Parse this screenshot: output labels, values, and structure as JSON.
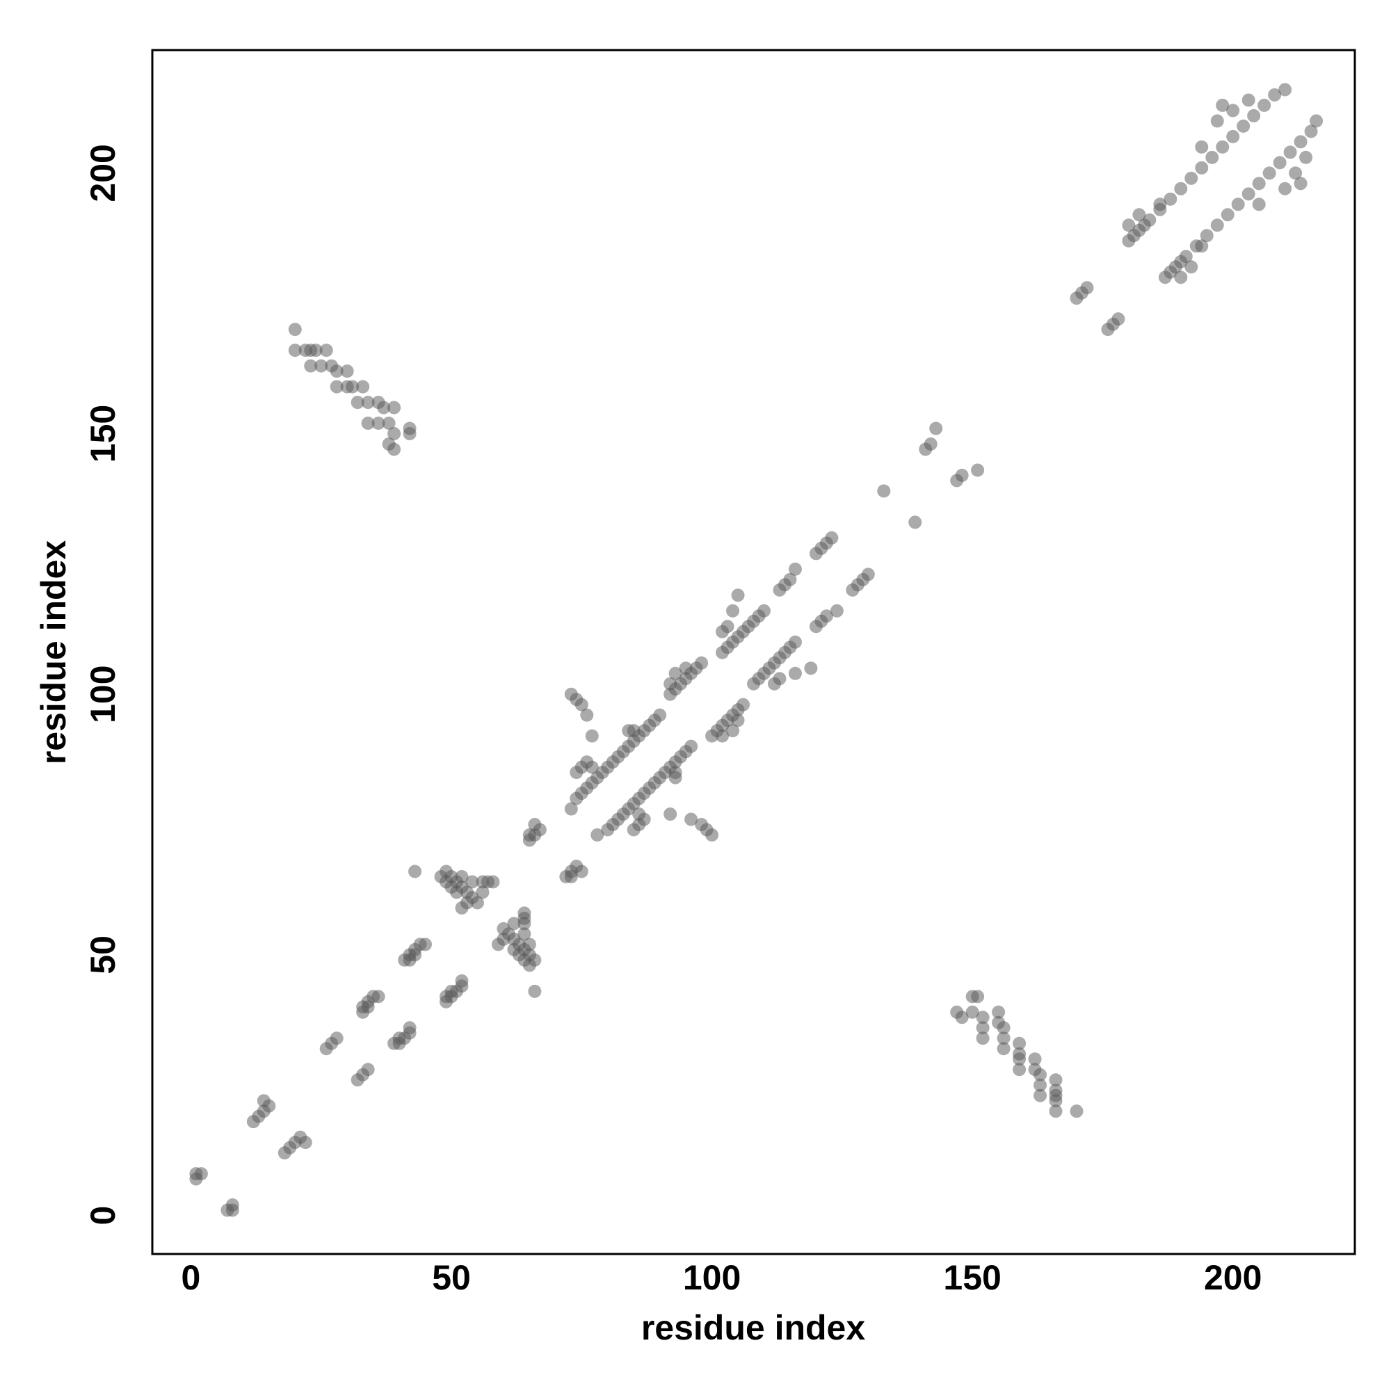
{
  "chart_data": {
    "type": "scatter",
    "x_label": "residue index",
    "y_label": "residue index",
    "xlim": [
      -7.4,
      223.4
    ],
    "ylim": [
      -7.4,
      223.6
    ],
    "xticks": [
      0,
      50,
      100,
      150,
      200
    ],
    "yticks": [
      0,
      50,
      100,
      150,
      200
    ],
    "grid": false,
    "color": "#555555",
    "alpha": 0.5,
    "x": [
      1,
      2,
      1,
      12,
      13,
      14,
      15,
      14,
      26,
      27,
      28,
      33,
      34,
      35,
      36,
      33,
      34,
      41,
      42,
      43,
      44,
      45,
      42,
      43,
      48,
      49,
      49,
      50,
      51,
      52,
      53,
      54,
      55,
      56,
      57,
      53,
      52,
      51,
      50,
      52,
      54,
      56,
      58,
      43,
      65,
      66,
      67,
      66,
      65,
      73,
      74,
      75,
      76,
      77,
      78,
      79,
      80,
      81,
      82,
      83,
      84,
      85,
      86,
      87,
      88,
      89,
      90,
      74,
      75,
      76,
      77,
      73,
      74,
      75,
      76,
      77,
      84,
      85,
      92,
      93,
      94,
      95,
      96,
      97,
      98,
      92,
      93,
      95,
      102,
      103,
      104,
      105,
      106,
      107,
      108,
      109,
      110,
      103,
      104,
      105,
      102,
      113,
      114,
      115,
      116,
      120,
      121,
      122,
      123,
      133,
      141,
      142,
      143,
      170,
      171,
      172,
      180,
      181,
      182,
      183,
      184,
      186,
      188,
      190,
      192,
      194,
      196,
      198,
      200,
      202,
      204,
      206,
      208,
      210,
      180,
      182,
      186,
      194,
      197,
      200,
      198,
      203,
      20,
      20,
      22,
      23,
      24,
      26,
      23,
      25,
      27,
      28,
      30,
      28,
      30,
      31,
      33,
      32,
      34,
      36,
      37,
      39,
      34,
      36,
      38,
      39,
      38,
      42,
      42,
      39,
      8,
      8,
      7,
      18,
      19,
      20,
      21,
      22,
      32,
      33,
      34,
      40,
      41,
      42,
      42,
      39,
      40,
      49,
      50,
      51,
      52,
      52,
      49,
      50,
      65,
      66,
      64,
      65,
      64,
      63,
      62,
      61,
      60,
      62,
      64,
      60,
      59,
      62,
      63,
      65,
      64,
      64,
      64,
      66,
      72,
      73,
      74,
      75,
      73,
      78,
      80,
      81,
      82,
      83,
      84,
      85,
      86,
      87,
      88,
      89,
      90,
      91,
      92,
      93,
      94,
      95,
      96,
      85,
      86,
      87,
      86,
      100,
      99,
      98,
      96,
      92,
      93,
      93,
      100,
      101,
      102,
      103,
      104,
      105,
      106,
      102,
      104,
      105,
      108,
      109,
      110,
      111,
      112,
      113,
      114,
      115,
      116,
      113,
      116,
      119,
      112,
      120,
      121,
      122,
      124,
      127,
      128,
      129,
      130,
      139,
      147,
      148,
      151,
      176,
      177,
      178,
      187,
      188,
      189,
      190,
      191,
      193,
      195,
      197,
      199,
      201,
      203,
      205,
      207,
      209,
      211,
      213,
      215,
      216,
      190,
      192,
      194,
      205,
      210,
      212,
      213,
      214,
      170,
      166,
      166,
      166,
      166,
      166,
      163,
      163,
      163,
      162,
      162,
      159,
      159,
      159,
      159,
      156,
      156,
      156,
      155,
      155,
      152,
      152,
      152,
      150,
      148,
      151,
      150,
      147
    ],
    "y": [
      8,
      8,
      7,
      18,
      19,
      20,
      21,
      22,
      32,
      33,
      34,
      40,
      41,
      42,
      42,
      39,
      40,
      49,
      50,
      51,
      52,
      52,
      49,
      50,
      65,
      66,
      64,
      65,
      64,
      63,
      62,
      61,
      60,
      62,
      64,
      60,
      59,
      62,
      63,
      65,
      64,
      64,
      64,
      66,
      72,
      73,
      74,
      75,
      73,
      78,
      80,
      81,
      82,
      83,
      84,
      85,
      86,
      87,
      88,
      89,
      90,
      91,
      92,
      93,
      94,
      95,
      96,
      85,
      86,
      87,
      86,
      100,
      99,
      98,
      96,
      92,
      93,
      93,
      100,
      101,
      102,
      103,
      104,
      105,
      106,
      102,
      104,
      105,
      108,
      109,
      110,
      111,
      112,
      113,
      114,
      115,
      116,
      113,
      116,
      119,
      112,
      120,
      121,
      122,
      124,
      127,
      128,
      129,
      130,
      139,
      147,
      148,
      151,
      176,
      177,
      178,
      187,
      188,
      189,
      190,
      191,
      193,
      195,
      197,
      199,
      201,
      203,
      205,
      207,
      209,
      211,
      213,
      215,
      216,
      190,
      192,
      194,
      205,
      210,
      212,
      213,
      214,
      170,
      166,
      166,
      166,
      166,
      166,
      163,
      163,
      163,
      162,
      162,
      159,
      159,
      159,
      159,
      156,
      156,
      156,
      155,
      155,
      152,
      152,
      152,
      150,
      148,
      151,
      150,
      147,
      1,
      2,
      1,
      12,
      13,
      14,
      15,
      14,
      26,
      27,
      28,
      33,
      34,
      35,
      36,
      33,
      34,
      41,
      42,
      43,
      44,
      45,
      42,
      43,
      48,
      49,
      49,
      50,
      51,
      52,
      53,
      54,
      55,
      56,
      57,
      53,
      52,
      51,
      50,
      52,
      54,
      56,
      58,
      43,
      65,
      66,
      67,
      66,
      65,
      73,
      74,
      75,
      76,
      77,
      78,
      79,
      80,
      81,
      82,
      83,
      84,
      85,
      86,
      87,
      88,
      89,
      90,
      74,
      75,
      76,
      77,
      73,
      74,
      75,
      76,
      77,
      84,
      85,
      92,
      93,
      94,
      95,
      96,
      97,
      98,
      92,
      93,
      95,
      102,
      103,
      104,
      105,
      106,
      107,
      108,
      109,
      110,
      103,
      104,
      105,
      102,
      113,
      114,
      115,
      116,
      120,
      121,
      122,
      123,
      133,
      141,
      142,
      143,
      170,
      171,
      172,
      180,
      181,
      182,
      183,
      184,
      186,
      188,
      190,
      192,
      194,
      196,
      198,
      200,
      202,
      204,
      206,
      208,
      210,
      180,
      182,
      186,
      194,
      197,
      200,
      198,
      203,
      20,
      20,
      22,
      23,
      24,
      26,
      23,
      25,
      27,
      28,
      30,
      28,
      30,
      31,
      33,
      32,
      34,
      36,
      37,
      39,
      34,
      36,
      38,
      39,
      38,
      42,
      42,
      39
    ]
  }
}
